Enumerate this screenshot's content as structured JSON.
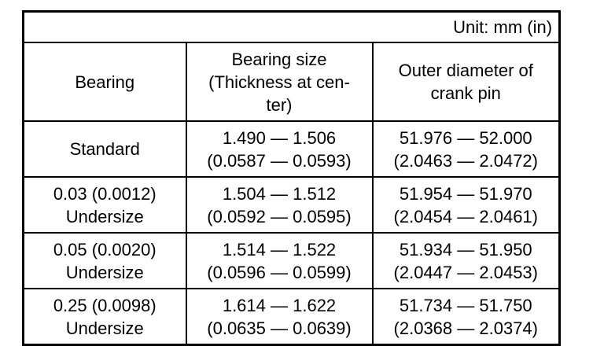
{
  "unit_label": "Unit: mm (in)",
  "headers": {
    "bearing": "Bearing",
    "size": [
      "Bearing size",
      "(Thickness at cen-",
      "ter)"
    ],
    "outer": [
      "Outer diameter of",
      "crank pin"
    ]
  },
  "rows": [
    {
      "bearing": [
        "Standard"
      ],
      "size": [
        "1.490 — 1.506",
        "(0.0587 — 0.0593)"
      ],
      "outer": [
        "51.976 — 52.000",
        "(2.0463 — 2.0472)"
      ]
    },
    {
      "bearing": [
        "0.03 (0.0012)",
        "Undersize"
      ],
      "size": [
        "1.504 — 1.512",
        "(0.0592 — 0.0595)"
      ],
      "outer": [
        "51.954 — 51.970",
        "(2.0454 — 2.0461)"
      ]
    },
    {
      "bearing": [
        "0.05 (0.0020)",
        "Undersize"
      ],
      "size": [
        "1.514 — 1.522",
        "(0.0596 — 0.0599)"
      ],
      "outer": [
        "51.934 — 51.950",
        "(2.0447 — 2.0453)"
      ]
    },
    {
      "bearing": [
        "0.25 (0.0098)",
        "Undersize"
      ],
      "size": [
        "1.614 — 1.622",
        "(0.0635 — 0.0639)"
      ],
      "outer": [
        "51.734 — 51.750",
        "(2.0368 — 2.0374)"
      ]
    }
  ],
  "colors": {
    "border": "#000000",
    "background": "#ffffff",
    "text": "#000000"
  }
}
